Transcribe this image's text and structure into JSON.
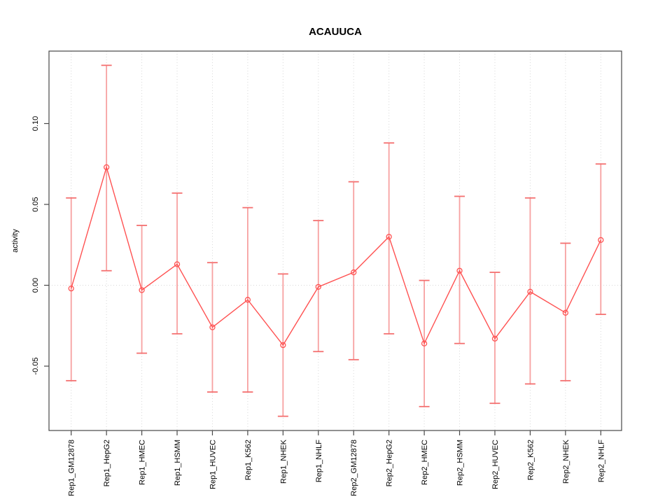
{
  "chart_data": {
    "type": "line",
    "title": "ACAUUCA",
    "xlabel": "",
    "ylabel": "activity",
    "legend": "none",
    "marker": "open-circle",
    "grid": "dotted vertical gridline at each category; dotted horizontal line at y=0",
    "categories": [
      "Rep1_GM12878",
      "Rep1_HepG2",
      "Rep1_HMEC",
      "Rep1_HSMM",
      "Rep1_HUVEC",
      "Rep1_K562",
      "Rep1_NHEK",
      "Rep1_NHLF",
      "Rep2_GM12878",
      "Rep2_HepG2",
      "Rep2_HMEC",
      "Rep2_HSMM",
      "Rep2_HUVEC",
      "Rep2_K562",
      "Rep2_NHEK",
      "Rep2_NHLF"
    ],
    "series": [
      {
        "name": "activity",
        "values": [
          -0.002,
          0.073,
          -0.003,
          0.013,
          -0.026,
          -0.009,
          -0.037,
          -0.001,
          0.008,
          0.03,
          -0.036,
          0.009,
          -0.033,
          -0.004,
          -0.017,
          0.028
        ],
        "error_high": [
          0.054,
          0.136,
          0.037,
          0.057,
          0.014,
          0.048,
          0.007,
          0.04,
          0.064,
          0.088,
          0.003,
          0.055,
          0.008,
          0.054,
          0.026,
          0.075
        ],
        "error_low": [
          -0.059,
          0.009,
          -0.042,
          -0.03,
          -0.066,
          -0.066,
          -0.081,
          -0.041,
          -0.046,
          -0.03,
          -0.075,
          -0.036,
          -0.073,
          -0.061,
          -0.059,
          -0.018
        ]
      }
    ],
    "yticks": [
      {
        "label": "-0.05",
        "value": -0.05
      },
      {
        "label": "0.00",
        "value": 0.0
      },
      {
        "label": "0.05",
        "value": 0.05
      },
      {
        "label": "0.10",
        "value": 0.1
      }
    ],
    "ylim": [
      -0.0898,
      0.1448
    ],
    "colors": {
      "line": "#ff5252",
      "error_bar": "#f7a1a1",
      "error_cap": "#f47070",
      "grid": "#d8d8d8",
      "axis": "#484848",
      "text": "#000000"
    }
  }
}
